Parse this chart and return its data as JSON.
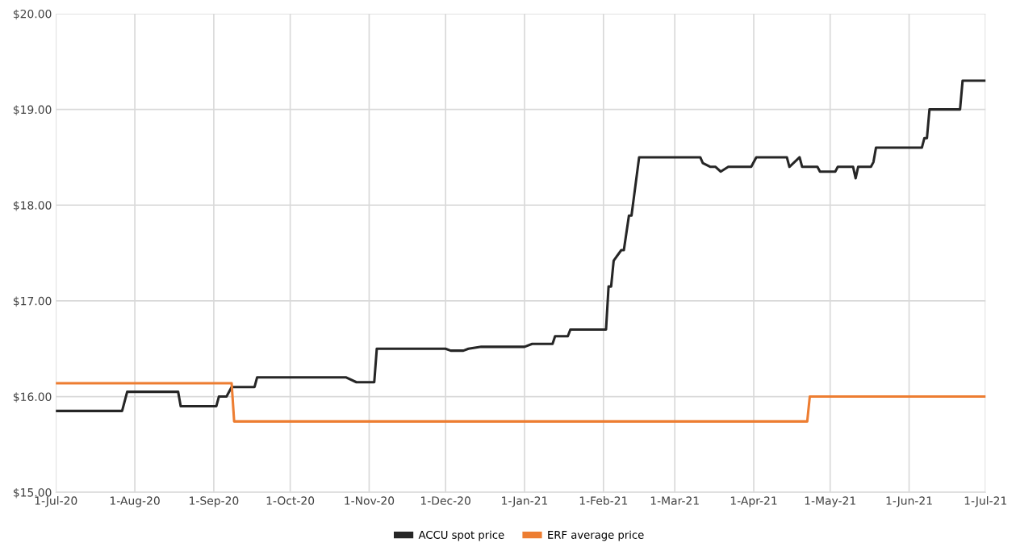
{
  "chart_data": {
    "type": "line",
    "xlim": [
      "2020-07-01",
      "2021-07-01"
    ],
    "xticks": [
      {
        "value": "2020-07-01",
        "label": "1-Jul-20"
      },
      {
        "value": "2020-08-01",
        "label": "1-Aug-20"
      },
      {
        "value": "2020-09-01",
        "label": "1-Sep-20"
      },
      {
        "value": "2020-10-01",
        "label": "1-Oct-20"
      },
      {
        "value": "2020-11-01",
        "label": "1-Nov-20"
      },
      {
        "value": "2020-12-01",
        "label": "1-Dec-20"
      },
      {
        "value": "2021-01-01",
        "label": "1-Jan-21"
      },
      {
        "value": "2021-02-01",
        "label": "1-Feb-21"
      },
      {
        "value": "2021-03-01",
        "label": "1-Mar-21"
      },
      {
        "value": "2021-04-01",
        "label": "1-Apr-21"
      },
      {
        "value": "2021-05-01",
        "label": "1-May-21"
      },
      {
        "value": "2021-06-01",
        "label": "1-Jun-21"
      },
      {
        "value": "2021-07-01",
        "label": "1-Jul-21"
      }
    ],
    "ylim": [
      15,
      20
    ],
    "yticks": [
      {
        "value": 15,
        "label": "$15.00"
      },
      {
        "value": 16,
        "label": "$16.00"
      },
      {
        "value": 17,
        "label": "$17.00"
      },
      {
        "value": 18,
        "label": "$18.00"
      },
      {
        "value": 19,
        "label": "$19.00"
      },
      {
        "value": 20,
        "label": "$20.00"
      }
    ],
    "grid": true,
    "legend": "bottom",
    "marker": "none",
    "line_style": "solid",
    "series": [
      {
        "name": "ACCU spot price",
        "color": "#262626",
        "x": [
          "2020-07-01",
          "2020-07-27",
          "2020-07-29",
          "2020-08-18",
          "2020-08-19",
          "2020-09-02",
          "2020-09-03",
          "2020-09-06",
          "2020-09-08",
          "2020-09-17",
          "2020-09-18",
          "2020-10-23",
          "2020-10-27",
          "2020-11-03",
          "2020-11-04",
          "2020-12-01",
          "2020-12-03",
          "2020-12-08",
          "2020-12-10",
          "2020-12-15",
          "2021-01-01",
          "2021-01-04",
          "2021-01-12",
          "2021-01-13",
          "2021-01-18",
          "2021-01-19",
          "2021-02-02",
          "2021-02-03",
          "2021-02-04",
          "2021-02-05",
          "2021-02-08",
          "2021-02-09",
          "2021-02-11",
          "2021-02-12",
          "2021-02-15",
          "2021-03-11",
          "2021-03-12",
          "2021-03-15",
          "2021-03-17",
          "2021-03-19",
          "2021-03-22",
          "2021-03-31",
          "2021-04-02",
          "2021-04-14",
          "2021-04-15",
          "2021-04-19",
          "2021-04-20",
          "2021-04-26",
          "2021-04-27",
          "2021-05-03",
          "2021-05-04",
          "2021-05-10",
          "2021-05-11",
          "2021-05-12",
          "2021-05-17",
          "2021-05-18",
          "2021-05-19",
          "2021-06-06",
          "2021-06-07",
          "2021-06-08",
          "2021-06-09",
          "2021-06-21",
          "2021-06-22",
          "2021-07-01"
        ],
        "values": [
          15.85,
          15.85,
          16.05,
          16.05,
          15.9,
          15.9,
          16.0,
          16.0,
          16.1,
          16.1,
          16.2,
          16.2,
          16.15,
          16.15,
          16.5,
          16.5,
          16.48,
          16.48,
          16.5,
          16.52,
          16.52,
          16.55,
          16.55,
          16.63,
          16.63,
          16.7,
          16.7,
          17.15,
          17.15,
          17.42,
          17.53,
          17.53,
          17.89,
          17.89,
          18.5,
          18.5,
          18.44,
          18.4,
          18.4,
          18.35,
          18.4,
          18.4,
          18.5,
          18.5,
          18.4,
          18.5,
          18.4,
          18.4,
          18.35,
          18.35,
          18.4,
          18.4,
          18.28,
          18.4,
          18.4,
          18.45,
          18.6,
          18.6,
          18.7,
          18.7,
          19.0,
          19.0,
          19.3,
          19.3
        ]
      },
      {
        "name": "ERF average price",
        "color": "#ed7d31",
        "x": [
          "2020-07-01",
          "2020-09-08",
          "2020-09-09",
          "2021-04-22",
          "2021-04-23",
          "2021-07-01"
        ],
        "values": [
          16.14,
          16.14,
          15.74,
          15.74,
          16.0,
          16.0
        ]
      }
    ]
  }
}
